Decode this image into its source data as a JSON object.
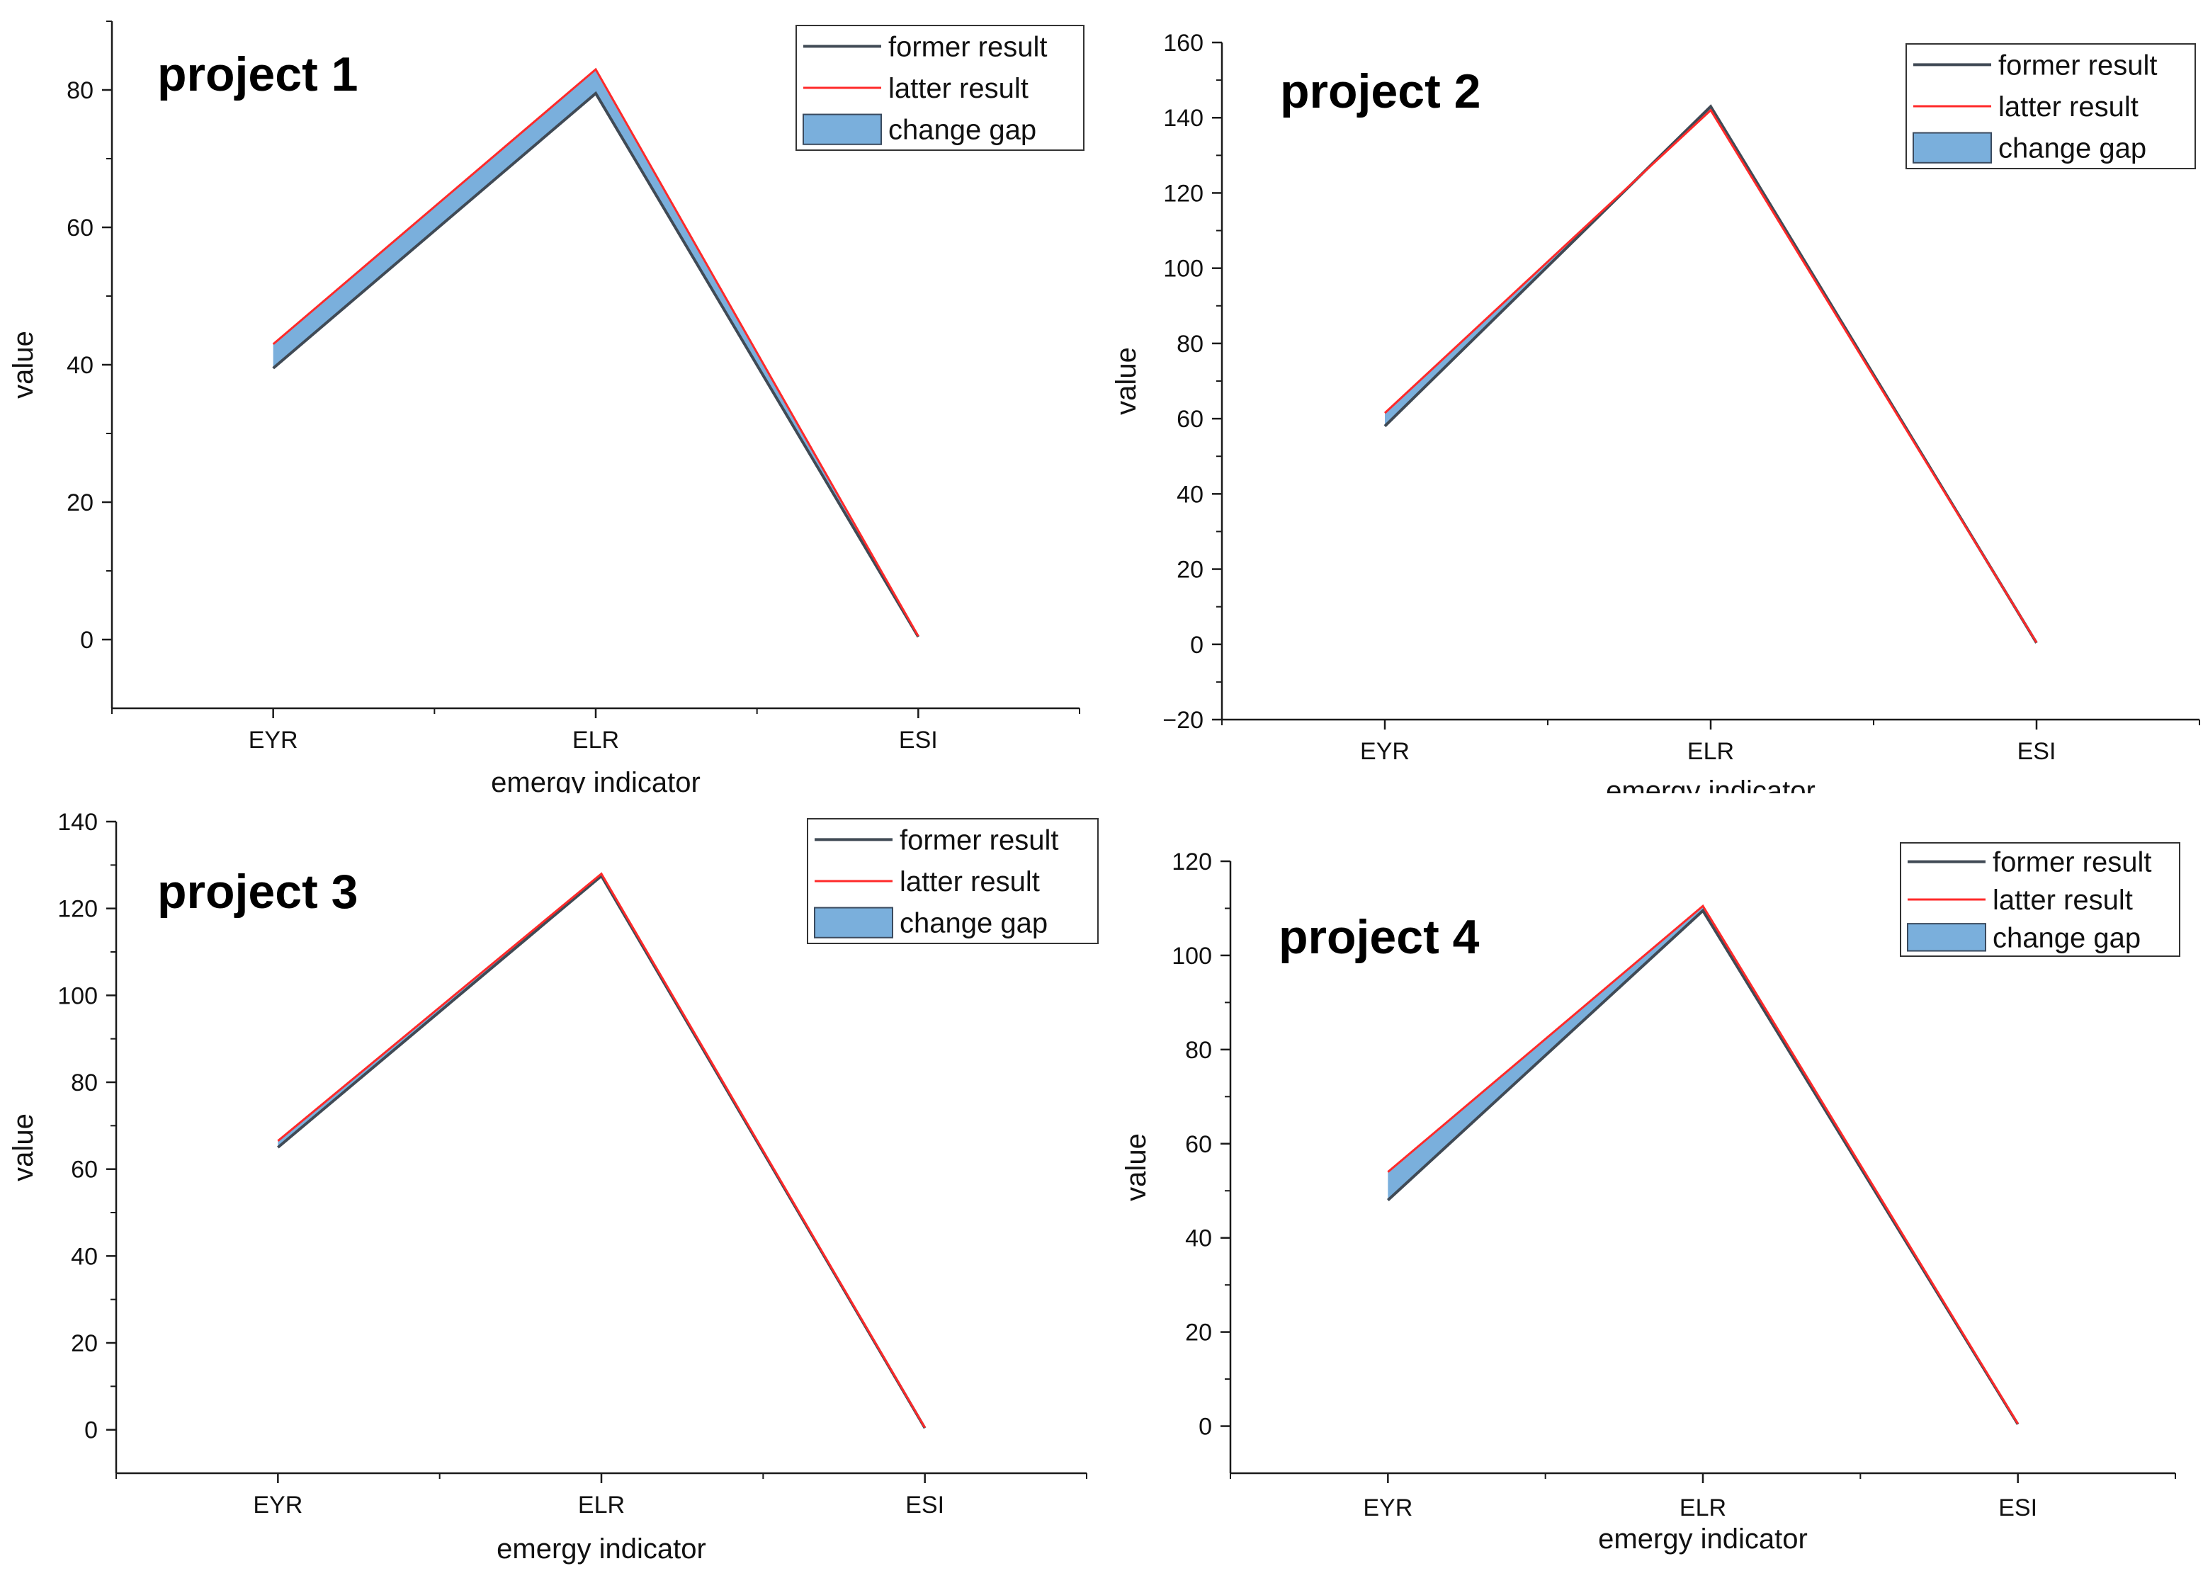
{
  "legend": {
    "former_label": "former result",
    "latter_label": "latter result",
    "gap_label": "change gap"
  },
  "colors": {
    "former": "#404a55",
    "latter": "#ff2a2a",
    "gap_fill": "#7aafdc",
    "gap_stroke": "#3a4a5e",
    "axis": "#1a1a1a"
  },
  "chart_data": [
    {
      "type": "area",
      "title": "project 1",
      "xlabel": "emergy indicator",
      "ylabel": "value",
      "categories": [
        "EYR",
        "ELR",
        "ESI"
      ],
      "ylim": [
        -10,
        90
      ],
      "yticks": [
        0,
        20,
        40,
        60,
        80
      ],
      "ytick_labels": [
        "0",
        "20",
        "40",
        "60",
        "80"
      ],
      "legend_position": "top-right",
      "series": [
        {
          "name": "former result",
          "values": [
            39.5,
            79.5,
            0.4
          ]
        },
        {
          "name": "latter result",
          "values": [
            43.0,
            83.0,
            0.5
          ]
        }
      ]
    },
    {
      "type": "area",
      "title": "project 2",
      "xlabel": "emergy indicator",
      "ylabel": "value",
      "categories": [
        "EYR",
        "ELR",
        "ESI"
      ],
      "ylim": [
        -20,
        160
      ],
      "yticks": [
        -20,
        0,
        20,
        40,
        60,
        80,
        100,
        120,
        140,
        160
      ],
      "ytick_labels": [
        "−20",
        "0",
        "20",
        "40",
        "60",
        "80",
        "100",
        "120",
        "140",
        "160"
      ],
      "legend_position": "top-right",
      "series": [
        {
          "name": "former result",
          "values": [
            58.0,
            143.0,
            0.4
          ]
        },
        {
          "name": "latter result",
          "values": [
            61.5,
            142.0,
            0.5
          ]
        }
      ]
    },
    {
      "type": "area",
      "title": "project 3",
      "xlabel": "emergy indicator",
      "ylabel": "value",
      "categories": [
        "EYR",
        "ELR",
        "ESI"
      ],
      "ylim": [
        -10,
        140
      ],
      "yticks": [
        0,
        20,
        40,
        60,
        80,
        100,
        120,
        140
      ],
      "ytick_labels": [
        "0",
        "20",
        "40",
        "60",
        "80",
        "100",
        "120",
        "140"
      ],
      "legend_position": "top-right",
      "series": [
        {
          "name": "former result",
          "values": [
            65.0,
            127.5,
            0.4
          ]
        },
        {
          "name": "latter result",
          "values": [
            66.5,
            128.0,
            0.5
          ]
        }
      ]
    },
    {
      "type": "area",
      "title": "project 4",
      "xlabel": "emergy indicator",
      "ylabel": "value",
      "categories": [
        "EYR",
        "ELR",
        "ESI"
      ],
      "ylim": [
        -10,
        120
      ],
      "yticks": [
        0,
        20,
        40,
        60,
        80,
        100,
        120
      ],
      "ytick_labels": [
        "0",
        "20",
        "40",
        "60",
        "80",
        "100",
        "120"
      ],
      "legend_position": "top-right",
      "series": [
        {
          "name": "former result",
          "values": [
            48.0,
            109.5,
            0.4
          ]
        },
        {
          "name": "latter result",
          "values": [
            54.0,
            110.5,
            0.5
          ]
        }
      ]
    }
  ]
}
